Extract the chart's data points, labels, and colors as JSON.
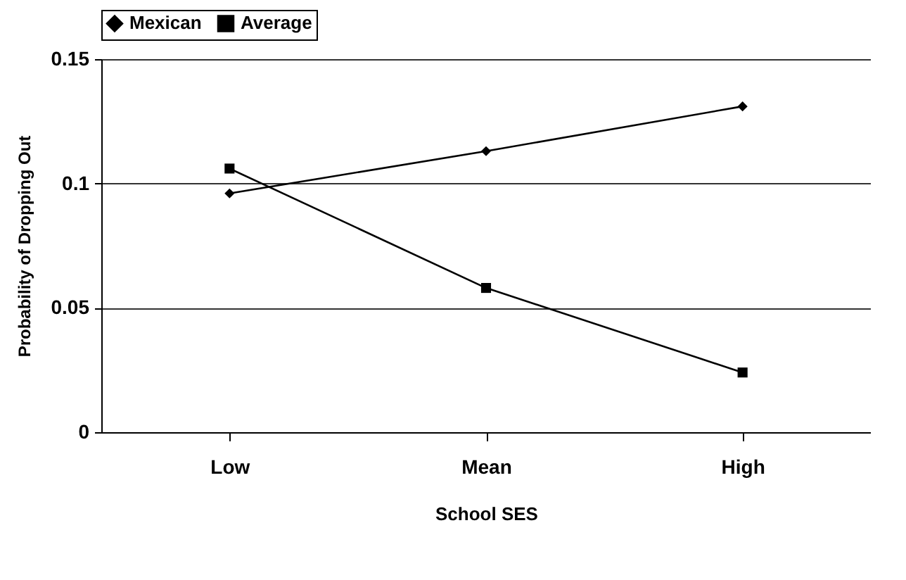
{
  "chart_data": {
    "type": "line",
    "xlabel": "School SES",
    "ylabel": "Probability of Dropping Out",
    "categories": [
      "Low",
      "Mean",
      "High"
    ],
    "series": [
      {
        "name": "Mexican",
        "color": "#000000",
        "marker": "diamond",
        "values": [
          0.096,
          0.113,
          0.131
        ]
      },
      {
        "name": "Average",
        "color": "#000000",
        "marker": "square",
        "values": [
          0.106,
          0.058,
          0.024
        ]
      }
    ],
    "ylim": [
      0,
      0.15
    ],
    "yticks": [
      0,
      0.05,
      0.1,
      0.15
    ],
    "grid": "y",
    "legend": "top"
  }
}
